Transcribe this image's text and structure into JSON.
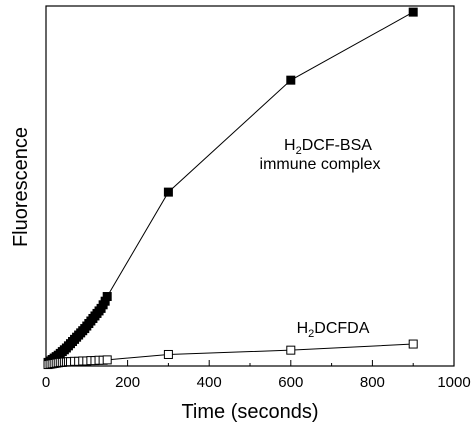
{
  "chart_data": {
    "type": "scatter",
    "xlabel": "Time (seconds)",
    "ylabel": "Fluorescence",
    "xlim": [
      0,
      1000
    ],
    "ylim": [
      0,
      1
    ],
    "x_ticks": [
      "0",
      "200",
      "400",
      "600",
      "800",
      "1000"
    ],
    "y_ticks_labeled": false,
    "grid": false,
    "legend": "none",
    "series": [
      {
        "marker": "filled-square",
        "color": "#000000",
        "x": [
          5,
          10,
          15,
          20,
          25,
          30,
          35,
          40,
          45,
          50,
          55,
          60,
          65,
          70,
          75,
          80,
          85,
          90,
          95,
          100,
          105,
          110,
          115,
          120,
          125,
          130,
          135,
          140,
          145,
          150,
          300,
          600,
          900
        ],
        "y": [
          0.01,
          0.014,
          0.018,
          0.022,
          0.026,
          0.03,
          0.035,
          0.04,
          0.045,
          0.05,
          0.056,
          0.062,
          0.068,
          0.074,
          0.08,
          0.086,
          0.092,
          0.098,
          0.104,
          0.111,
          0.118,
          0.125,
          0.132,
          0.139,
          0.146,
          0.153,
          0.16,
          0.17,
          0.18,
          0.193,
          0.483,
          0.794,
          0.983
        ]
      },
      {
        "marker": "open-square",
        "color": "#000000",
        "x": [
          5,
          10,
          15,
          20,
          25,
          30,
          35,
          40,
          45,
          50,
          55,
          60,
          70,
          80,
          90,
          100,
          110,
          120,
          130,
          140,
          150,
          300,
          600,
          900
        ],
        "y": [
          0.004,
          0.005,
          0.006,
          0.007,
          0.008,
          0.009,
          0.01,
          0.01,
          0.011,
          0.011,
          0.012,
          0.012,
          0.013,
          0.013,
          0.014,
          0.014,
          0.015,
          0.015,
          0.016,
          0.016,
          0.017,
          0.032,
          0.044,
          0.061
        ]
      }
    ],
    "annotations": [
      {
        "main": "H",
        "sub": "2",
        "rest": "DCF-BSA",
        "line2": "immune complex",
        "anchor_series": 0
      },
      {
        "main": "H",
        "sub": "2",
        "rest": "DCFDA",
        "anchor_series": 1
      }
    ]
  }
}
